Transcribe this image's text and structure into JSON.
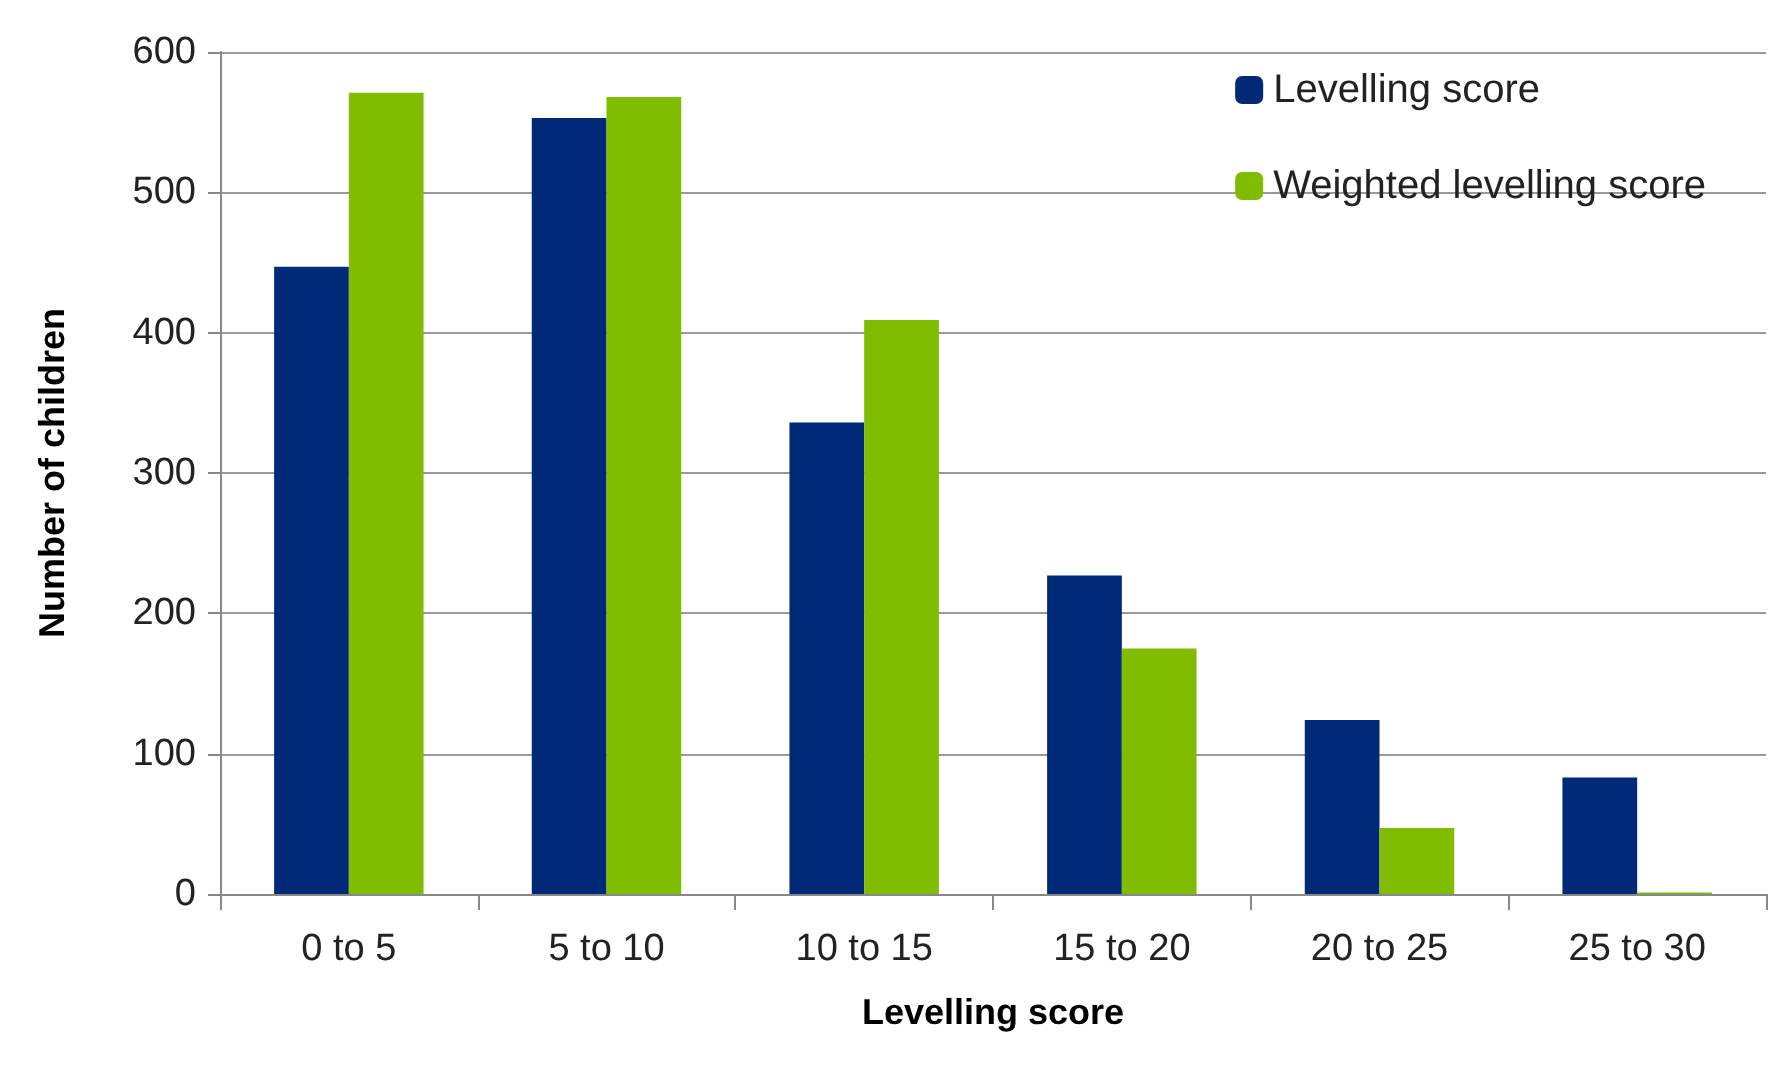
{
  "chart_data": {
    "type": "bar",
    "xlabel": "Levelling score",
    "ylabel": "Number of children",
    "categories": [
      "0 to 5",
      "5 to 10",
      "10 to 15",
      "15 to 20",
      "20 to 25",
      "25 to 30"
    ],
    "series": [
      {
        "name": "Levelling score",
        "color": "#002a78",
        "values": [
          447,
          553,
          336,
          227,
          124,
          83
        ]
      },
      {
        "name": "Weighted levelling score",
        "color": "#80bc00",
        "values": [
          571,
          568,
          409,
          175,
          47,
          1
        ]
      }
    ],
    "ylim": [
      0,
      600
    ],
    "yticks": [
      0,
      100,
      200,
      300,
      400,
      500,
      600
    ],
    "grid": "y",
    "legend": "top right"
  }
}
